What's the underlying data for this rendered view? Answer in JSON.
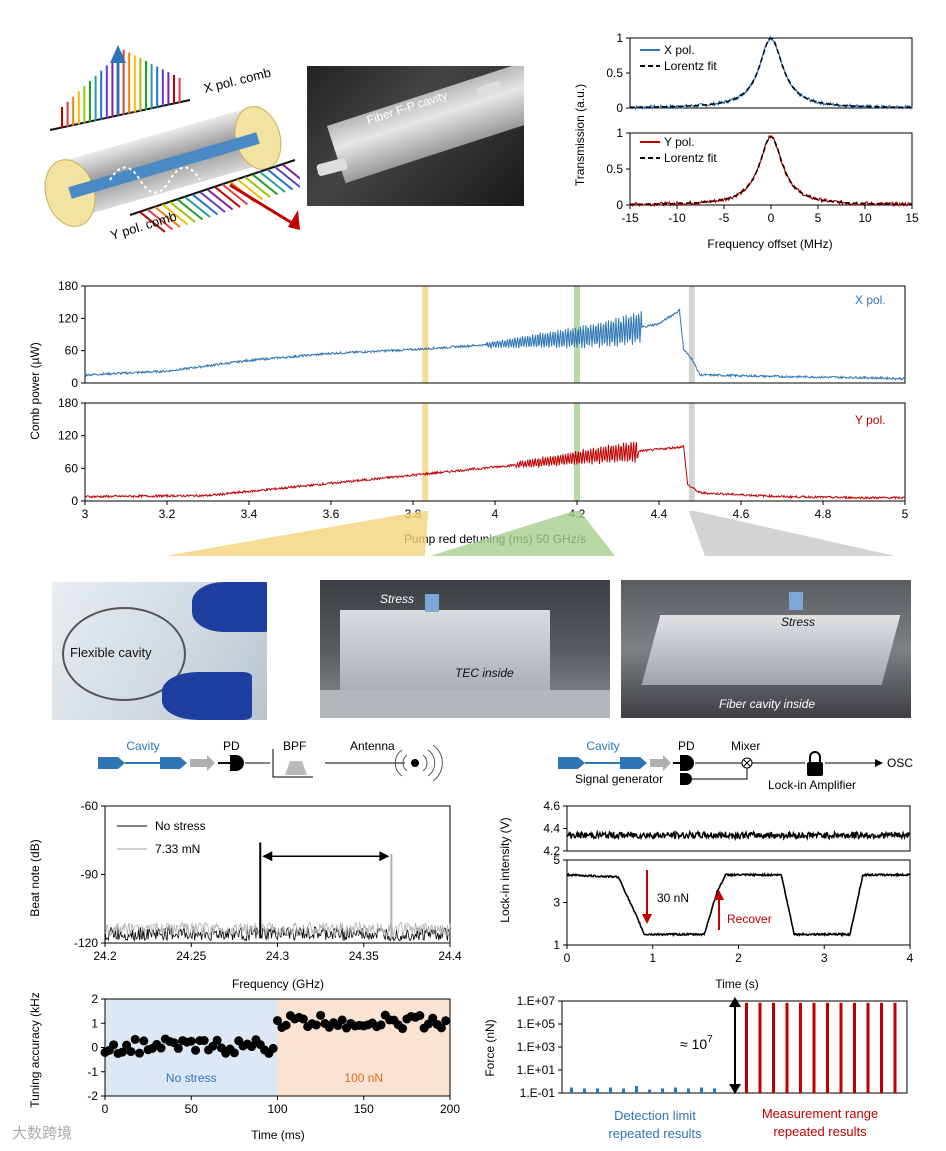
{
  "schematic": {
    "x_comb_label": "X pol. comb",
    "y_comb_label": "Y pol. comb",
    "brillouin_label": "Brillouin",
    "photo_label": "Fiber F-P cavity"
  },
  "chart_data": [
    {
      "type": "line",
      "id": "x-transmission",
      "ylabel": "Transmission (a.u.)",
      "ylim": [
        0,
        1
      ],
      "yticks": [
        "0",
        "0.5",
        "1"
      ],
      "xlim": [
        -15,
        15
      ],
      "series": [
        {
          "name": "X pol.",
          "color": "#2e75b6",
          "x": [
            -15,
            -10,
            -6,
            -4,
            -3,
            -2,
            -1,
            0,
            1,
            2,
            3,
            4,
            6,
            10,
            15
          ],
          "y": [
            0.02,
            0.04,
            0.09,
            0.17,
            0.26,
            0.44,
            0.8,
            1.0,
            0.8,
            0.44,
            0.26,
            0.17,
            0.09,
            0.04,
            0.02
          ]
        },
        {
          "name": "Lorentz fit",
          "color": "#000000",
          "dashed": true,
          "x": [
            -15,
            -10,
            -6,
            -4,
            -3,
            -2,
            -1,
            0,
            1,
            2,
            3,
            4,
            6,
            10,
            15
          ],
          "y": [
            0.02,
            0.04,
            0.09,
            0.17,
            0.26,
            0.44,
            0.8,
            1.0,
            0.8,
            0.44,
            0.26,
            0.17,
            0.09,
            0.04,
            0.02
          ]
        }
      ]
    },
    {
      "type": "line",
      "id": "y-transmission",
      "xlabel": "Frequency offset (MHz)",
      "ylim": [
        0,
        1
      ],
      "yticks": [
        "0",
        "0.5",
        "1"
      ],
      "xlim": [
        -15,
        15
      ],
      "xticks": [
        "-15",
        "-10",
        "-5",
        "0",
        "5",
        "10",
        "15"
      ],
      "series": [
        {
          "name": "Y pol.",
          "color": "#c00000",
          "x": [
            -15,
            -10,
            -6,
            -4,
            -3,
            -2,
            -1,
            0,
            1,
            2,
            3,
            4,
            6,
            10,
            15
          ],
          "y": [
            0.02,
            0.04,
            0.09,
            0.17,
            0.26,
            0.44,
            0.8,
            0.95,
            0.8,
            0.44,
            0.26,
            0.17,
            0.09,
            0.04,
            0.02
          ]
        },
        {
          "name": "Lorentz fit",
          "color": "#000000",
          "dashed": true,
          "x": [
            -15,
            -10,
            -6,
            -4,
            -3,
            -2,
            -1,
            0,
            1,
            2,
            3,
            4,
            6,
            10,
            15
          ],
          "y": [
            0.02,
            0.04,
            0.09,
            0.17,
            0.26,
            0.44,
            0.8,
            0.95,
            0.8,
            0.44,
            0.26,
            0.17,
            0.09,
            0.04,
            0.02
          ]
        }
      ]
    },
    {
      "type": "line",
      "id": "comb-power-x",
      "ylabel": "Comb power (µW)",
      "ylim": [
        0,
        180
      ],
      "yticks": [
        "0",
        "60",
        "120",
        "180"
      ],
      "xlim": [
        3,
        5
      ],
      "label": "X pol.",
      "series": [
        {
          "name": "X pol.",
          "color": "#2e75b6",
          "x": [
            3.0,
            3.2,
            3.4,
            3.6,
            3.8,
            4.0,
            4.2,
            4.3,
            4.4,
            4.45,
            4.46,
            4.48,
            4.5,
            4.7,
            4.9,
            5.0
          ],
          "y": [
            15,
            22,
            42,
            55,
            62,
            72,
            85,
            95,
            110,
            135,
            62,
            45,
            15,
            12,
            10,
            8
          ],
          "osc_from": 3.98,
          "osc_to": 4.36,
          "osc_amp": 25
        }
      ]
    },
    {
      "type": "line",
      "id": "comb-power-y",
      "xlabel": "Pump red detuning (ms) 50 GHz/s",
      "ylim": [
        0,
        180
      ],
      "yticks": [
        "0",
        "60",
        "120",
        "180"
      ],
      "xlim": [
        3,
        5
      ],
      "xticks": [
        "3",
        "3.2",
        "3.4",
        "3.6",
        "3.8",
        "4",
        "4.2",
        "4.4",
        "4.6",
        "4.8",
        "5"
      ],
      "label": "Y pol.",
      "series": [
        {
          "name": "Y pol.",
          "color": "#c00000",
          "x": [
            3.0,
            3.3,
            3.5,
            3.7,
            3.9,
            4.1,
            4.2,
            4.3,
            4.4,
            4.46,
            4.47,
            4.5,
            4.7,
            4.9,
            5.0
          ],
          "y": [
            8,
            10,
            25,
            40,
            55,
            70,
            80,
            88,
            95,
            100,
            30,
            15,
            8,
            6,
            6
          ],
          "osc_from": 4.05,
          "osc_to": 4.35,
          "osc_amp": 15
        }
      ]
    },
    {
      "type": "line",
      "id": "beat-note",
      "ylabel": "Beat note (dB)",
      "xlabel": "Frequency (GHz)",
      "ylim": [
        -120,
        -60
      ],
      "yticks": [
        "-60",
        "-90",
        "-120"
      ],
      "xlim": [
        24.2,
        24.4
      ],
      "xticks": [
        "24.2",
        "24.25",
        "24.3",
        "24.35",
        "24.4"
      ],
      "series": [
        {
          "name": "No stress",
          "color": "#000000",
          "peak_x": 24.29,
          "peak_y": -76,
          "floor": -116
        },
        {
          "name": "7.33 mN",
          "color": "#b0b0b0",
          "peak_x": 24.366,
          "peak_y": -81,
          "floor": -116
        }
      ]
    },
    {
      "type": "line",
      "id": "lockin-top",
      "ylabel": "Lock-in intensity (V)",
      "ylim": [
        4.2,
        4.6
      ],
      "yticks": [
        "4.2",
        "4.4",
        "4.6"
      ],
      "xlim": [
        0,
        4
      ],
      "series": [
        {
          "name": "",
          "color": "#000000",
          "x": [
            0,
            4
          ],
          "y": [
            4.35,
            4.33
          ]
        }
      ]
    },
    {
      "type": "line",
      "id": "lockin-bottom",
      "xlabel": "Time (s)",
      "ylim": [
        1,
        5
      ],
      "yticks": [
        "1",
        "3",
        "5"
      ],
      "xlim": [
        0,
        4
      ],
      "xticks": [
        "0",
        "1",
        "2",
        "3",
        "4"
      ],
      "series": [
        {
          "name": "",
          "color": "#000000",
          "x": [
            0,
            0.6,
            0.85,
            0.9,
            1.6,
            1.75,
            1.85,
            2.5,
            2.65,
            3.3,
            3.45,
            4.0
          ],
          "y": [
            4.3,
            4.2,
            2.0,
            1.5,
            1.5,
            3.5,
            4.3,
            4.3,
            1.5,
            1.5,
            4.3,
            4.3
          ]
        }
      ],
      "annotations": [
        "30 nN",
        "Recover"
      ]
    },
    {
      "type": "scatter",
      "id": "tuning-accuracy",
      "ylabel": "Tuning accuracy (kHz)",
      "xlabel": "Time (ms)",
      "ylim": [
        -2,
        2
      ],
      "yticks": [
        "2",
        "1",
        "0",
        "-1",
        "-2"
      ],
      "xlim": [
        0,
        200
      ],
      "xticks": [
        "0",
        "50",
        "100",
        "150",
        "200"
      ],
      "regions": [
        {
          "label": "No stress",
          "from": 0,
          "to": 100,
          "color": "#dce8f5"
        },
        {
          "label": "100 nN",
          "from": 100,
          "to": 200,
          "color": "#fbe3d4"
        }
      ],
      "series": [
        {
          "name": "",
          "color": "#000000",
          "level_before": 0.05,
          "level_after": 1.05,
          "spread": 0.3
        }
      ]
    },
    {
      "type": "bar",
      "id": "force",
      "ylabel": "Force (nN)",
      "yscale": "log",
      "yticks": [
        "1.E+07",
        "1.E+05",
        "1.E+03",
        "1.E+01",
        "1.E-01"
      ],
      "series": [
        {
          "name": "Detection limit repeated results",
          "color": "#2e75b6",
          "values": [
            0.3,
            0.25,
            0.25,
            0.3,
            0.25,
            0.4,
            0.2,
            0.25,
            0.3,
            0.25,
            0.3,
            0.25
          ]
        },
        {
          "name": "Measurement range repeated results",
          "color": "#c00000",
          "values": [
            7000000,
            7000000,
            7000000,
            7000000,
            7000000,
            7000000,
            7000000,
            7000000,
            7000000,
            7000000,
            7000000,
            7000000
          ]
        }
      ],
      "annotation": "≈ 10",
      "annotation_sup": "7"
    }
  ],
  "transmission_legend": {
    "x": "X pol.",
    "y": "Y pol.",
    "fit": "Lorentz fit"
  },
  "comb_legend": {
    "x": "X pol.",
    "y": "Y pol."
  },
  "photos": {
    "flexible": "Flexible cavity",
    "stress1": "Stress",
    "tec": "TEC inside",
    "stress2": "Stress",
    "fiber_inside": "Fiber cavity inside"
  },
  "setup_left": {
    "cavity": "Cavity",
    "pd": "PD",
    "bpf": "BPF",
    "antenna": "Antenna"
  },
  "setup_right": {
    "cavity": "Cavity",
    "pd": "PD",
    "mixer": "Mixer",
    "signal_generator": "Signal generator",
    "lockin": "Lock-in Amplifier",
    "osc": "OSC"
  },
  "beat_legend": {
    "no_stress": "No stress",
    "stress": "7.33 mN"
  },
  "lockin_annotations": {
    "force": "30 nN",
    "recover": "Recover"
  },
  "tuning_regions": {
    "left": "No stress",
    "right": "100 nN"
  },
  "force_labels": {
    "approx": "≈ 10",
    "sup": "7",
    "left_line1": "Detection limit",
    "left_line2": "repeated results",
    "right_line1": "Measurement range",
    "right_line2": "repeated results"
  },
  "watermark": "大数跨境"
}
